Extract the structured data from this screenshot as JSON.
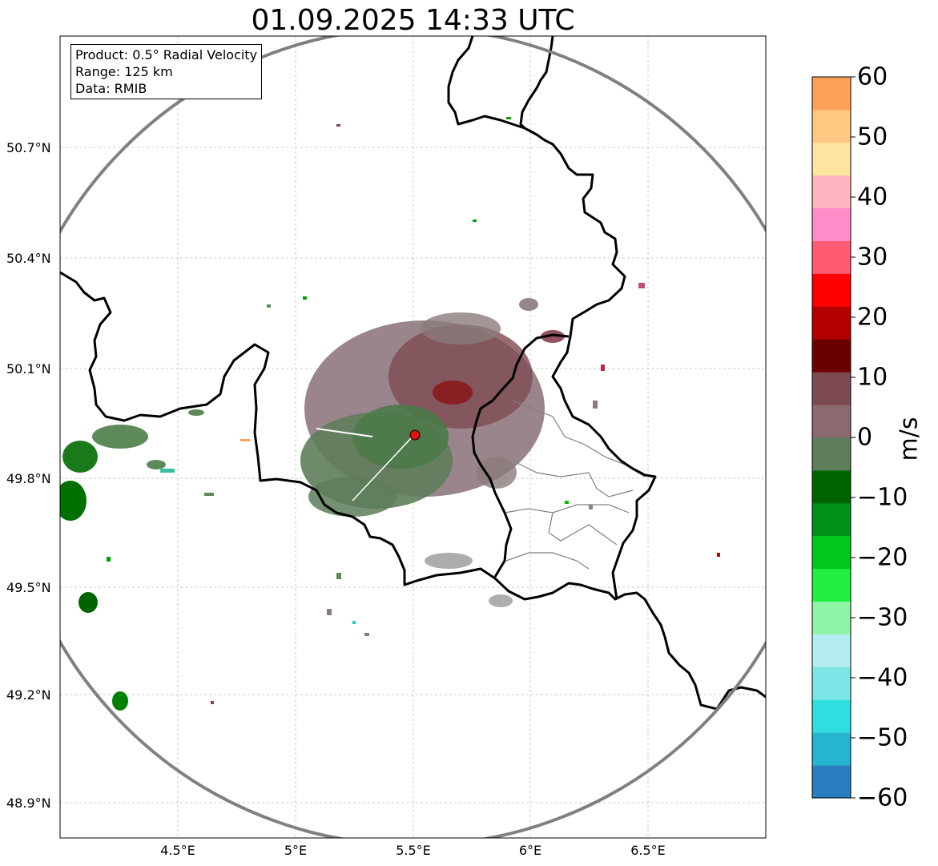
{
  "title": "01.09.2025 14:33 UTC",
  "info_box": {
    "product": "Product: 0.5° Radial Velocity",
    "range": "Range: 125 km",
    "data": "Data: RMIB"
  },
  "axes": {
    "lat_labels": [
      "50.7°N",
      "50.4°N",
      "50.1°N",
      "49.8°N",
      "49.5°N",
      "49.2°N",
      "48.9°N"
    ],
    "lon_labels": [
      "4.5°E",
      "5°E",
      "5.5°E",
      "6°E",
      "6.5°E"
    ],
    "grid": true
  },
  "colorbar": {
    "unit": "m/s",
    "ticks": [
      "60",
      "50",
      "40",
      "30",
      "20",
      "10",
      "0",
      "−10",
      "−20",
      "−30",
      "−40",
      "−50",
      "−60"
    ],
    "min": -60,
    "max": 60,
    "colors": [
      "#2a7ec0",
      "#27b4d2",
      "#2fdede",
      "#7ce6e6",
      "#b4eef0",
      "#8ef5a8",
      "#22ee44",
      "#00c81c",
      "#00901a",
      "#006400",
      "#5e7d5a",
      "#8a6a70",
      "#7e4a52",
      "#6b0000",
      "#b20000",
      "#ff0000",
      "#ff5a70",
      "#ff8cc8",
      "#ffb4be",
      "#ffe6a0",
      "#ffc882",
      "#ffa05a"
    ]
  },
  "radar": {
    "site_lon": 5.51,
    "site_lat": 49.91,
    "range_km": 125,
    "site_color": "#e01010"
  },
  "map_extent": {
    "lon": [
      4.0,
      7.0
    ],
    "lat": [
      48.8,
      51.0
    ]
  }
}
